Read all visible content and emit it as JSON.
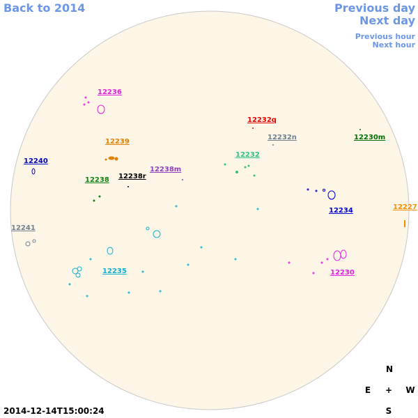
{
  "nav": {
    "back": "Back to 2014",
    "previous_day": "Previous day",
    "next_day": "Next day",
    "previous_hour": "Previous hour",
    "next_hour": "Next hour"
  },
  "regions": [
    {
      "label": "12236",
      "color": "#e020e0"
    },
    {
      "label": "12232q",
      "color": "#e00000"
    },
    {
      "label": "12232n",
      "color": "#708090"
    },
    {
      "label": "12230m",
      "color": "#007000"
    },
    {
      "label": "12239",
      "color": "#e08000"
    },
    {
      "label": "12232",
      "color": "#30c080"
    },
    {
      "label": "12240",
      "color": "#0000c0"
    },
    {
      "label": "12238m",
      "color": "#9040c0"
    },
    {
      "label": "12238r",
      "color": "#000000"
    },
    {
      "label": "12238",
      "color": "#108010"
    },
    {
      "label": "12234",
      "color": "#0000d0"
    },
    {
      "label": "12227",
      "color": "#f09000"
    },
    {
      "label": "12241",
      "color": "#708090"
    },
    {
      "label": "12235",
      "color": "#10b0d0"
    },
    {
      "label": "12230",
      "color": "#e020e0"
    }
  ],
  "compass": {
    "north": "N",
    "east": "E",
    "center": "+",
    "west": "W",
    "south": "S"
  },
  "timestamp": "2014-12-14T15:00:24"
}
